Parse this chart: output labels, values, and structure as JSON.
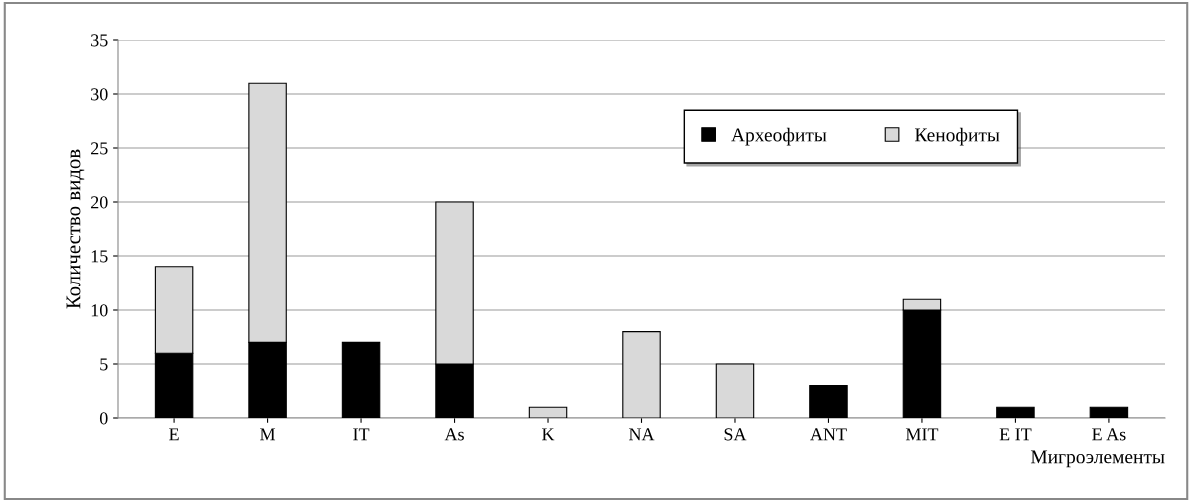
{
  "chart_data": {
    "type": "bar",
    "stacked": true,
    "xlabel": "Мигроэлементы",
    "ylabel": "Количество видов",
    "categories": [
      "E",
      "M",
      "IT",
      "As",
      "K",
      "NA",
      "SA",
      "ANT",
      "MIT",
      "E IT",
      "E As"
    ],
    "series": [
      {
        "name": "Археофиты",
        "color": "#000000",
        "values": [
          6,
          7,
          7,
          5,
          0,
          0,
          0,
          3,
          10,
          1,
          1
        ]
      },
      {
        "name": "Кенофиты",
        "color": "#d9d9d9",
        "values": [
          8,
          24,
          0,
          15,
          1,
          8,
          5,
          0,
          1,
          0,
          0
        ]
      }
    ],
    "ylim": [
      0,
      35
    ],
    "yticks": [
      0,
      5,
      10,
      15,
      20,
      25,
      30,
      35
    ],
    "grid": "y",
    "legend": "top"
  }
}
